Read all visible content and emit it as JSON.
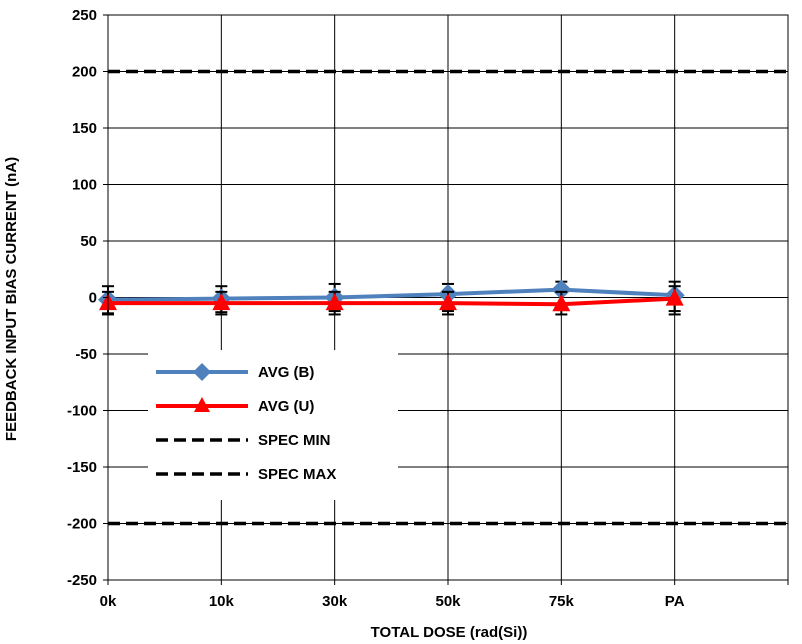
{
  "chart_data": {
    "type": "line",
    "title": "",
    "xlabel": "TOTAL DOSE (rad(Si))",
    "ylabel": "FEEDBACK INPUT BIAS CURRENT (nA)",
    "categories": [
      "0k",
      "10k",
      "30k",
      "50k",
      "75k",
      "PA"
    ],
    "ylim": [
      -250,
      250
    ],
    "yticks": [
      -250,
      -200,
      -150,
      -100,
      -50,
      0,
      50,
      100,
      150,
      200,
      250
    ],
    "grid": true,
    "legend_position": "lower-left",
    "series": [
      {
        "name": "AVG (B)",
        "values": [
          -2,
          -1,
          0,
          3,
          7,
          2
        ],
        "err_low": [
          -14,
          -13,
          -12,
          -12,
          -6,
          -12
        ],
        "err_high": [
          10,
          10,
          12,
          12,
          14,
          14
        ],
        "color": "#4f81bd",
        "marker": "diamond"
      },
      {
        "name": "AVG (U)",
        "values": [
          -5,
          -5,
          -5,
          -5,
          -6,
          -1
        ],
        "err_low": [
          -15,
          -15,
          -15,
          -15,
          -15,
          -15
        ],
        "err_high": [
          5,
          5,
          5,
          5,
          5,
          10
        ],
        "color": "#ff0000",
        "marker": "triangle"
      },
      {
        "name": "SPEC MIN",
        "values": [
          -200,
          -200,
          -200,
          -200,
          -200,
          -200
        ],
        "color": "#000000",
        "dashed": true
      },
      {
        "name": "SPEC MAX",
        "values": [
          200,
          200,
          200,
          200,
          200,
          200
        ],
        "color": "#000000",
        "dashed": true
      }
    ]
  }
}
